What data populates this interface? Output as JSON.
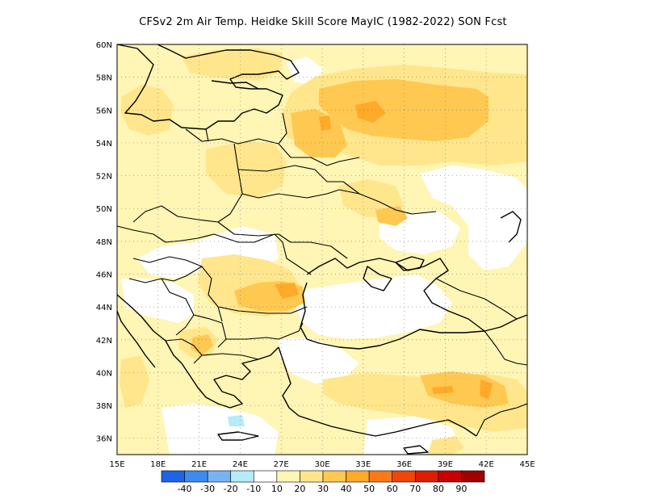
{
  "title": "CFSv2  2m Air Temp. Heidke Skill Score MayIC (1982-2022) SON Fcst",
  "map": {
    "lon_range": [
      15,
      45
    ],
    "lat_range": [
      35,
      60
    ],
    "lon_ticks": [
      "15E",
      "18E",
      "21E",
      "24E",
      "27E",
      "30E",
      "33E",
      "36E",
      "39E",
      "42E",
      "45E"
    ],
    "lat_ticks": [
      "36N",
      "38N",
      "40N",
      "42N",
      "44N",
      "46N",
      "48N",
      "50N",
      "52N",
      "54N",
      "56N",
      "58N",
      "60N"
    ],
    "gridlines": "dotted"
  },
  "colorbar": {
    "labels": [
      "-40",
      "-30",
      "-20",
      "-10",
      "10",
      "20",
      "30",
      "40",
      "50",
      "60",
      "70",
      "80",
      "90"
    ],
    "colors": [
      "#1e64e6",
      "#3c8cf0",
      "#78b4f4",
      "#b4ecf8",
      "#ffffff",
      "#fff5b4",
      "#ffe68c",
      "#ffc850",
      "#ffaa28",
      "#ff7814",
      "#f0460a",
      "#dc1e05",
      "#c80000",
      "#a00000"
    ]
  },
  "skill_regions": {
    "levels": [
      "10",
      "20",
      "30",
      "40"
    ],
    "colors": {
      "10": "#fff5b4",
      "20": "#ffe68c",
      "30": "#ffc850",
      "40": "#ffaa28"
    }
  }
}
